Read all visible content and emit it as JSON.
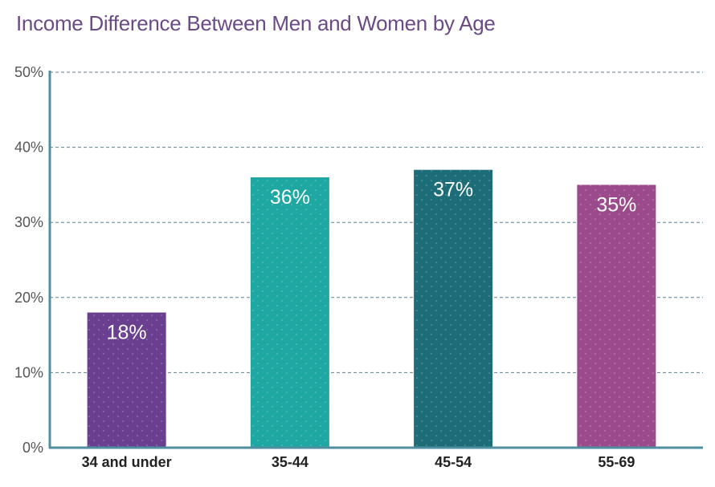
{
  "chart_data": {
    "type": "bar",
    "title": "Income Difference Between Men and Women by Age",
    "xlabel": "",
    "ylabel": "",
    "categories": [
      "34 and under",
      "35-44",
      "45-54",
      "55-69"
    ],
    "values": [
      18,
      36,
      37,
      35
    ],
    "data_labels": [
      "18%",
      "36%",
      "37%",
      "35%"
    ],
    "ylim": [
      0,
      50
    ],
    "y_ticks": [
      0,
      10,
      20,
      30,
      40,
      50
    ],
    "y_tick_labels": [
      "0%",
      "10%",
      "20%",
      "30%",
      "40%",
      "50%"
    ],
    "grid": true,
    "bar_colors": [
      "#6b3f8f",
      "#1ea7a3",
      "#1c6d78",
      "#9b4b8c"
    ],
    "title_color": "#6b4b86",
    "axis_color": "#4f8fa0",
    "grid_color": "#5b8296"
  }
}
